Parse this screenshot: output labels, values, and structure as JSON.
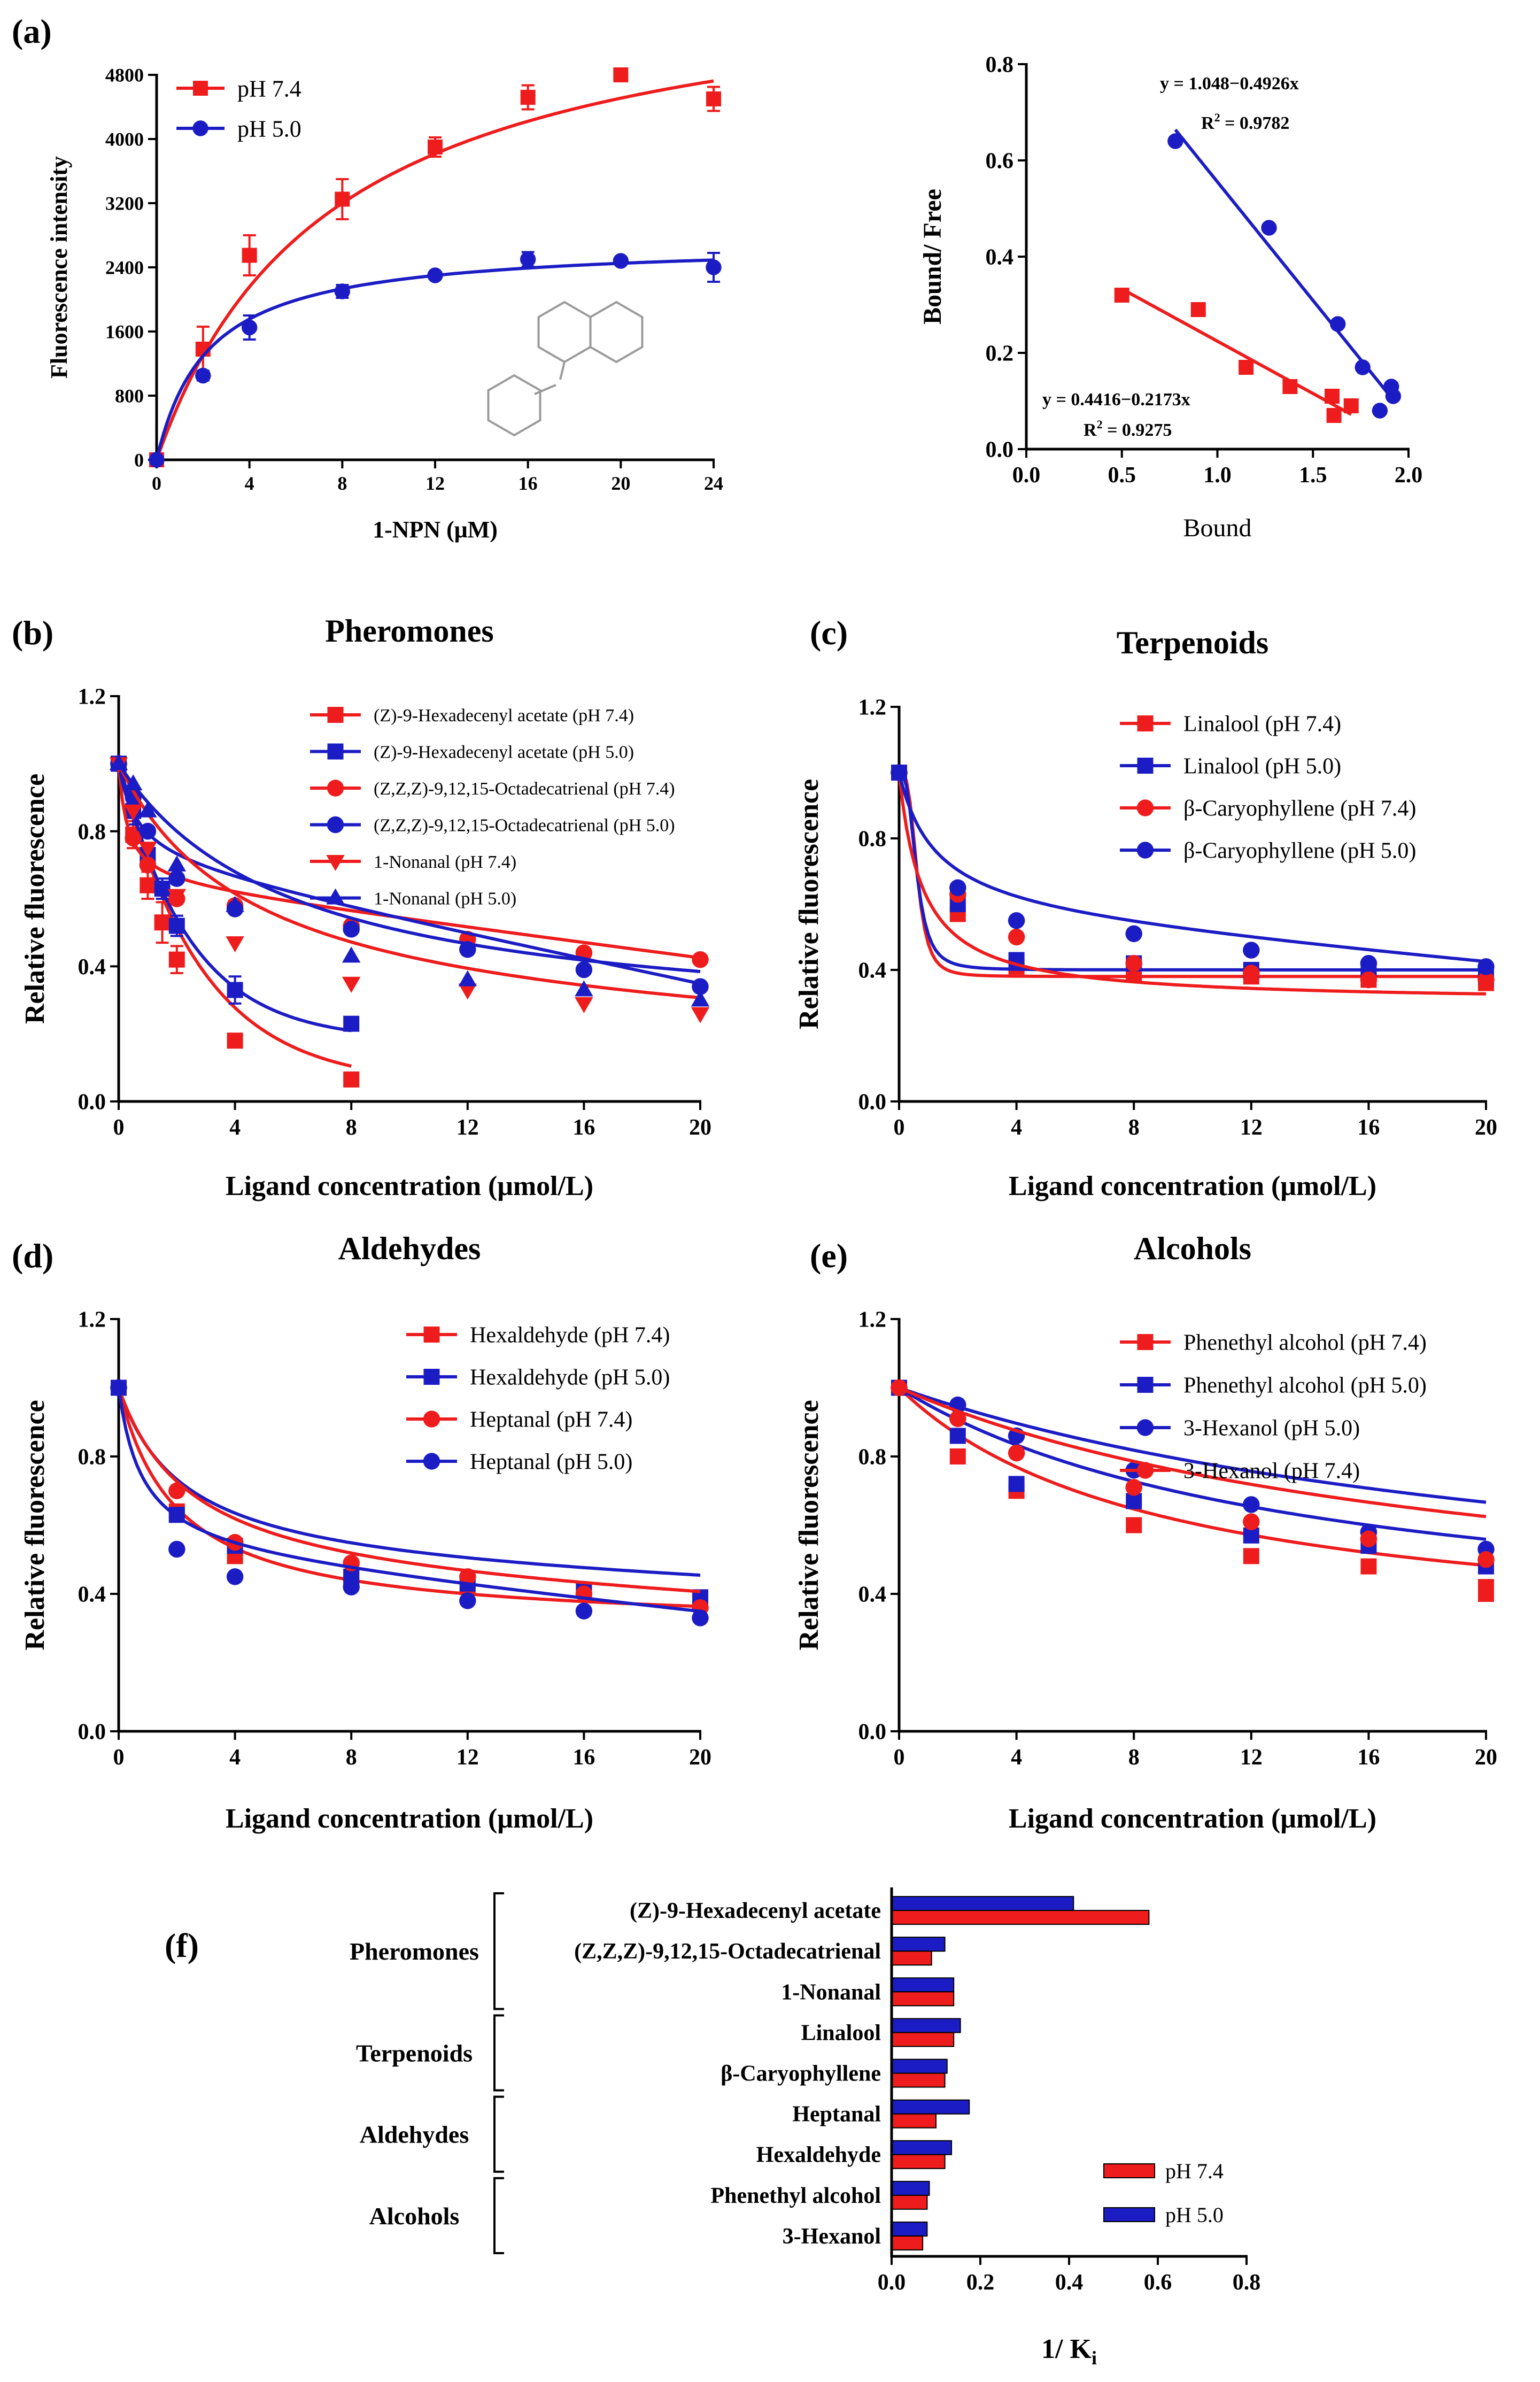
{
  "colors": {
    "red": "#ee1c1c",
    "blue": "#1c1cc4",
    "black": "#000000"
  },
  "chart_data": [
    {
      "id": "a1",
      "type": "scatter",
      "panel_label": "(a)",
      "title": "",
      "xlabel": "1-NPN (μM)",
      "ylabel": "Fluorescence intensity",
      "xlim": [
        0,
        24
      ],
      "ylim": [
        0,
        4800
      ],
      "xticks": [
        0,
        4,
        8,
        12,
        16,
        20,
        24
      ],
      "yticks": [
        0,
        800,
        1600,
        2400,
        3200,
        4000,
        4800
      ],
      "xtick_labels": [
        "0",
        "4",
        "8",
        "12",
        "16",
        "20",
        "24"
      ],
      "ytick_labels": [
        "0",
        "800",
        "1600",
        "2400",
        "3200",
        "4000",
        "4800"
      ],
      "legend_position": "top-left",
      "series": [
        {
          "name": "pH 7.4",
          "color": "red",
          "marker": "square",
          "fit": "hyperbola",
          "fit_params": [
            6200,
            7.5
          ],
          "x": [
            0,
            2,
            4,
            8,
            12,
            16,
            20,
            24
          ],
          "y": [
            0,
            1380,
            2550,
            3250,
            3900,
            4520,
            4800,
            4500
          ],
          "err": [
            0,
            280,
            250,
            250,
            120,
            150,
            80,
            150
          ]
        },
        {
          "name": "pH 5.0",
          "color": "blue",
          "marker": "circle",
          "fit": "hyperbola",
          "fit_params": [
            2720,
            2.2
          ],
          "x": [
            0,
            2,
            4,
            8,
            12,
            16,
            20,
            24
          ],
          "y": [
            0,
            1050,
            1650,
            2100,
            2300,
            2500,
            2480,
            2400
          ],
          "err": [
            0,
            60,
            150,
            80,
            40,
            90,
            40,
            180
          ]
        }
      ]
    },
    {
      "id": "a2",
      "type": "scatter",
      "panel_label": "",
      "title": "",
      "xlabel": "Bound",
      "ylabel": "Bound/ Free",
      "xlim": [
        0,
        2.0
      ],
      "ylim": [
        0,
        0.8
      ],
      "xticks": [
        0,
        0.5,
        1.0,
        1.5,
        2.0
      ],
      "yticks": [
        0,
        0.2,
        0.4,
        0.6,
        0.8
      ],
      "xtick_labels": [
        "0.0",
        "0.5",
        "1.0",
        "1.5",
        "2.0"
      ],
      "ytick_labels": [
        "0.0",
        "0.2",
        "0.4",
        "0.6",
        "0.8"
      ],
      "annotations": {
        "blue_eq": "y = 1.048−0.4926x",
        "blue_r2_base": "R",
        "blue_r2_sup": "2",
        "blue_r2_val": " = 0.9782",
        "red_eq": "y = 0.4416−0.2173x",
        "red_r2_base": "R",
        "red_r2_sup": "2",
        "red_r2_val": " = 0.9275"
      },
      "series": [
        {
          "name": "pH 7.4",
          "color": "red",
          "marker": "square",
          "fit": "linear",
          "fit_params": [
            0.4416,
            -0.2173
          ],
          "line_x": [
            0.5,
            1.7
          ],
          "x": [
            0.5,
            0.9,
            1.15,
            1.38,
            1.6,
            1.61,
            1.7
          ],
          "y": [
            0.32,
            0.29,
            0.17,
            0.13,
            0.11,
            0.07,
            0.09
          ]
        },
        {
          "name": "pH 5.0",
          "color": "blue",
          "marker": "circle",
          "fit": "linear",
          "fit_params": [
            1.048,
            -0.4926
          ],
          "line_x": [
            0.78,
            1.93
          ],
          "x": [
            0.78,
            1.27,
            1.63,
            1.76,
            1.85,
            1.91,
            1.92
          ],
          "y": [
            0.64,
            0.46,
            0.26,
            0.17,
            0.08,
            0.13,
            0.11
          ]
        }
      ]
    },
    {
      "id": "b",
      "type": "line",
      "panel_label": "(b)",
      "title": "Pheromones",
      "xlabel": "Ligand concentration (μmol/L)",
      "ylabel": "Relative fluorescence",
      "xlim": [
        0,
        20
      ],
      "ylim": [
        0,
        1.2
      ],
      "xticks": [
        0,
        4,
        8,
        12,
        16,
        20
      ],
      "yticks": [
        0,
        0.4,
        0.8,
        1.2
      ],
      "xtick_labels": [
        "0",
        "4",
        "8",
        "12",
        "16",
        "20"
      ],
      "ytick_labels": [
        "0.0",
        "0.4",
        "0.8",
        "1.2"
      ],
      "legend_position": "top-right",
      "series": [
        {
          "name": "(Z)-9-Hexadecenyl acetate (pH 7.4)",
          "color": "red",
          "marker": "square",
          "fit": "exp",
          "fit_params": [
            0.95,
            2.8,
            0.05
          ],
          "x": [
            0,
            0.5,
            1,
            1.5,
            2,
            4,
            8
          ],
          "y": [
            1.0,
            0.79,
            0.64,
            0.53,
            0.42,
            0.18,
            0.065
          ],
          "err": [
            0,
            0.04,
            0.04,
            0.06,
            0.04,
            0.02,
            0.01
          ]
        },
        {
          "name": "(Z)-9-Hexadecenyl acetate (pH 5.0)",
          "color": "blue",
          "marker": "square",
          "fit": "exp",
          "fit_params": [
            0.83,
            2.4,
            0.18
          ],
          "x": [
            0,
            0.5,
            1,
            1.5,
            2,
            4,
            8
          ],
          "y": [
            1.0,
            0.86,
            0.73,
            0.63,
            0.52,
            0.33,
            0.23
          ],
          "err": [
            0,
            0.04,
            0.03,
            0.03,
            0.03,
            0.04,
            0.02
          ]
        },
        {
          "name": "(Z,Z,Z)-9,12,15-Octadecatrienal (pH 7.4)",
          "color": "red",
          "marker": "circle",
          "fit": "hyp",
          "fit_params": [
            0.36,
            0.3,
            0.64,
            0.011
          ],
          "x": [
            0,
            0.5,
            1,
            2,
            4,
            8,
            12,
            16,
            20
          ],
          "y": [
            1.0,
            0.78,
            0.7,
            0.6,
            0.58,
            0.52,
            0.48,
            0.44,
            0.42
          ]
        },
        {
          "name": "(Z,Z,Z)-9,12,15-Octadecatrienal (pH 5.0)",
          "color": "blue",
          "marker": "circle",
          "fit": "hyp",
          "fit_params": [
            0.3,
            0.6,
            0.7,
            0.018
          ],
          "x": [
            0,
            0.5,
            1,
            2,
            4,
            8,
            12,
            16,
            20
          ],
          "y": [
            1.0,
            0.9,
            0.8,
            0.66,
            0.57,
            0.51,
            0.45,
            0.39,
            0.34
          ]
        },
        {
          "name": "1-Nonanal (pH 7.4)",
          "color": "red",
          "marker": "triangle-down",
          "fit": "hyp",
          "fit_params": [
            0.8,
            4.5,
            0.2,
            0.002
          ],
          "x": [
            0,
            0.5,
            1,
            2,
            4,
            8,
            12,
            16,
            20
          ],
          "y": [
            1.0,
            0.86,
            0.75,
            0.61,
            0.47,
            0.35,
            0.33,
            0.29,
            0.26
          ]
        },
        {
          "name": "1-Nonanal (pH 5.0)",
          "color": "blue",
          "marker": "triangle-up",
          "fit": "hyp",
          "fit_params": [
            0.8,
            6,
            0.2,
            0.0
          ],
          "x": [
            0,
            0.5,
            1,
            2,
            4,
            8,
            12,
            16,
            20
          ],
          "y": [
            1.0,
            0.94,
            0.86,
            0.7,
            0.58,
            0.43,
            0.36,
            0.33,
            0.3
          ]
        }
      ]
    },
    {
      "id": "c",
      "type": "line",
      "panel_label": "(c)",
      "title": "Terpenoids",
      "xlabel": "Ligand concentration (μmol/L)",
      "ylabel": "Relative fluorescence",
      "xlim": [
        0,
        20
      ],
      "ylim": [
        0,
        1.2
      ],
      "xticks": [
        0,
        4,
        8,
        12,
        16,
        20
      ],
      "yticks": [
        0,
        0.4,
        0.8,
        1.2
      ],
      "xtick_labels": [
        "0",
        "4",
        "8",
        "12",
        "16",
        "20"
      ],
      "ytick_labels": [
        "0.0",
        "0.4",
        "0.8",
        "1.2"
      ],
      "legend_position": "top-right",
      "series": [
        {
          "name": "Linalool (pH 7.4)",
          "color": "red",
          "marker": "square",
          "fit": "hill",
          "fit_params": [
            0.62,
            1.8,
            3.5,
            0.38
          ],
          "x": [
            0,
            2,
            4,
            8,
            12,
            16,
            20
          ],
          "y": [
            1.0,
            0.57,
            0.41,
            0.39,
            0.38,
            0.37,
            0.36
          ]
        },
        {
          "name": "Linalool (pH 5.0)",
          "color": "blue",
          "marker": "square",
          "fit": "hill",
          "fit_params": [
            0.6,
            1.9,
            3.0,
            0.4
          ],
          "x": [
            0,
            2,
            4,
            8,
            12,
            16,
            20
          ],
          "y": [
            1.0,
            0.6,
            0.43,
            0.42,
            0.4,
            0.39,
            0.38
          ]
        },
        {
          "name": "β-Caryophyllene (pH 7.4)",
          "color": "red",
          "marker": "circle",
          "fit": "hyp",
          "fit_params": [
            0.7,
            0.8,
            0.3,
            0.0
          ],
          "x": [
            0,
            2,
            4,
            8,
            12,
            16,
            20
          ],
          "y": [
            1.0,
            0.63,
            0.5,
            0.42,
            0.39,
            0.37,
            0.37
          ]
        },
        {
          "name": "β-Caryophyllene (pH 5.0)",
          "color": "blue",
          "marker": "circle",
          "fit": "hyp",
          "fit_params": [
            0.45,
            1.2,
            0.55,
            0.0075
          ],
          "x": [
            0,
            2,
            4,
            8,
            12,
            16,
            20
          ],
          "y": [
            1.0,
            0.65,
            0.55,
            0.51,
            0.46,
            0.42,
            0.41
          ]
        }
      ]
    },
    {
      "id": "d",
      "type": "line",
      "panel_label": "(d)",
      "title": "Aldehydes",
      "xlabel": "Ligand concentration (μmol/L)",
      "ylabel": "Relative fluorescence",
      "xlim": [
        0,
        20
      ],
      "ylim": [
        0,
        1.2
      ],
      "xticks": [
        0,
        4,
        8,
        12,
        16,
        20
      ],
      "yticks": [
        0,
        0.4,
        0.8,
        1.2
      ],
      "xtick_labels": [
        "0",
        "4",
        "8",
        "12",
        "16",
        "20"
      ],
      "ytick_labels": [
        "0.0",
        "0.4",
        "0.8",
        "1.2"
      ],
      "legend_position": "top-right",
      "series": [
        {
          "name": "Hexaldehyde (pH 7.4)",
          "color": "red",
          "marker": "square",
          "fit": "hyp",
          "fit_params": [
            0.7,
            2.0,
            0.3,
            0.0
          ],
          "x": [
            0,
            2,
            4,
            8,
            12,
            16,
            20
          ],
          "y": [
            1.0,
            0.64,
            0.51,
            0.45,
            0.42,
            0.41,
            0.39
          ]
        },
        {
          "name": "Hexaldehyde (pH 5.0)",
          "color": "blue",
          "marker": "square",
          "fit": "hyp",
          "fit_params": [
            0.55,
            2.2,
            0.45,
            0.0025
          ],
          "x": [
            0,
            2,
            4,
            8,
            12,
            16,
            20
          ],
          "y": [
            1.0,
            0.63,
            0.54,
            0.45,
            0.43,
            0.41,
            0.39
          ]
        },
        {
          "name": "Heptanal (pH 7.4)",
          "color": "red",
          "marker": "circle",
          "fit": "hyp",
          "fit_params": [
            0.6,
            2.5,
            0.4,
            0.003
          ],
          "x": [
            0,
            2,
            4,
            8,
            12,
            16,
            20
          ],
          "y": [
            1.0,
            0.7,
            0.55,
            0.49,
            0.45,
            0.4,
            0.36
          ]
        },
        {
          "name": "Heptanal (pH 5.0)",
          "color": "blue",
          "marker": "circle",
          "fit": "hyp",
          "fit_params": [
            0.5,
            0.8,
            0.5,
            0.0085
          ],
          "x": [
            0,
            2,
            4,
            8,
            12,
            16,
            20
          ],
          "y": [
            1.0,
            0.53,
            0.45,
            0.42,
            0.38,
            0.35,
            0.33
          ]
        }
      ]
    },
    {
      "id": "e",
      "type": "line",
      "panel_label": "(e)",
      "title": "Alcohols",
      "xlabel": "Ligand concentration (μmol/L)",
      "ylabel": "Relative fluorescence",
      "xlim": [
        0,
        20
      ],
      "ylim": [
        0,
        1.2
      ],
      "xticks": [
        0,
        4,
        8,
        12,
        16,
        20
      ],
      "yticks": [
        0,
        0.4,
        0.8,
        1.2
      ],
      "xtick_labels": [
        "0",
        "4",
        "8",
        "12",
        "16",
        "20"
      ],
      "ytick_labels": [
        "0.0",
        "0.4",
        "0.8",
        "1.2"
      ],
      "legend_position": "top-right",
      "series": [
        {
          "name": "Phenethyl alcohol (pH 7.4)",
          "color": "red",
          "marker": "square",
          "fit": "hyp",
          "fit_params": [
            0.75,
            9,
            0.25,
            0.0
          ],
          "x": [
            0,
            2,
            4,
            8,
            12,
            16,
            20,
            20
          ],
          "y": [
            1.0,
            0.8,
            0.7,
            0.6,
            0.51,
            0.48,
            0.42,
            0.4
          ]
        },
        {
          "name": "Phenethyl alcohol (pH 5.0)",
          "color": "blue",
          "marker": "square",
          "fit": "hyp",
          "fit_params": [
            0.75,
            14,
            0.25,
            0.0
          ],
          "x": [
            0,
            2,
            4,
            8,
            12,
            16,
            20
          ],
          "y": [
            1.0,
            0.86,
            0.72,
            0.67,
            0.57,
            0.54,
            0.48
          ]
        },
        {
          "name": "3-Hexanol (pH 5.0)",
          "color": "blue",
          "marker": "circle",
          "fit": "hyp",
          "fit_params": [
            0.75,
            25,
            0.25,
            0.0
          ],
          "x": [
            0,
            2,
            4,
            8,
            12,
            16,
            20
          ],
          "y": [
            1.0,
            0.95,
            0.86,
            0.76,
            0.66,
            0.58,
            0.53
          ]
        },
        {
          "name": "3-Hexanol (pH 7.4)",
          "color": "red",
          "marker": "circle",
          "fit": "hyp",
          "fit_params": [
            0.75,
            20,
            0.25,
            0.0
          ],
          "x": [
            0,
            2,
            4,
            8,
            12,
            16,
            20
          ],
          "y": [
            1.0,
            0.91,
            0.81,
            0.71,
            0.61,
            0.56,
            0.5
          ]
        }
      ]
    },
    {
      "id": "f",
      "type": "bar",
      "orientation": "horizontal",
      "panel_label": "(f)",
      "title": "",
      "xlabel_base": "1/ K",
      "xlabel_sub": "i",
      "xlim": [
        0,
        0.8
      ],
      "xticks": [
        0,
        0.2,
        0.4,
        0.6,
        0.8
      ],
      "xtick_labels": [
        "0.0",
        "0.2",
        "0.4",
        "0.6",
        "0.8"
      ],
      "legend_position": "bottom-right",
      "categories": [
        "(Z)-9-Hexadecenyl acetate",
        "(Z,Z,Z)-9,12,15-Octadecatrienal",
        "1-Nonanal",
        "Linalool",
        "β-Caryophyllene",
        "Heptanal",
        "Hexaldehyde",
        "Phenethyl alcohol",
        "3-Hexanol"
      ],
      "groups": [
        {
          "label": "Pheromones",
          "start": 0,
          "end": 2
        },
        {
          "label": "Terpenoids",
          "start": 3,
          "end": 4
        },
        {
          "label": "Aldehydes",
          "start": 5,
          "end": 6
        },
        {
          "label": "Alcohols",
          "start": 7,
          "end": 8
        }
      ],
      "series": [
        {
          "name": "pH 7.4",
          "color": "red",
          "values": [
            0.58,
            0.09,
            0.14,
            0.14,
            0.12,
            0.1,
            0.12,
            0.08,
            0.07
          ]
        },
        {
          "name": "pH 5.0",
          "color": "blue",
          "values": [
            0.41,
            0.12,
            0.14,
            0.155,
            0.125,
            0.175,
            0.135,
            0.085,
            0.08
          ]
        }
      ]
    }
  ]
}
